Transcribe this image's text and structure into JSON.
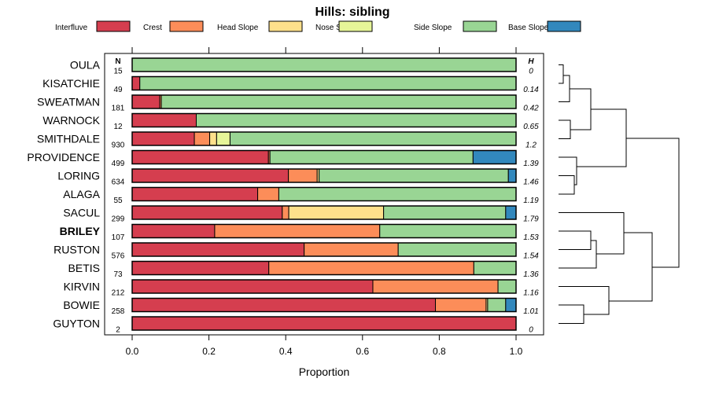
{
  "chart_data": {
    "type": "bar",
    "orientation": "horizontal",
    "stacked": true,
    "title": "Hills: sibling",
    "xlabel": "Proportion",
    "xlim": [
      0,
      1
    ],
    "xticks": [
      "0.0",
      "0.2",
      "0.4",
      "0.6",
      "0.8",
      "1.0"
    ],
    "xtick_values": [
      0,
      0.2,
      0.4,
      0.6,
      0.8,
      1.0
    ],
    "n_header": "N",
    "h_header": "H",
    "highlight": "BRILEY",
    "legend": {
      "position": "top",
      "entries": [
        {
          "name": "Interfluve",
          "color": "#D53E4F"
        },
        {
          "name": "Crest",
          "color": "#FC8D59"
        },
        {
          "name": "Head Slope",
          "color": "#FEE08B"
        },
        {
          "name": "Nose Slope",
          "color": "#E6F598"
        },
        {
          "name": "Side Slope",
          "color": "#99D594"
        },
        {
          "name": "Base Slope",
          "color": "#3288BD"
        }
      ]
    },
    "series_names": [
      "Interfluve",
      "Crest",
      "Head Slope",
      "Nose Slope",
      "Side Slope",
      "Base Slope"
    ],
    "rows": [
      {
        "name": "OULA",
        "n": "15",
        "h": "0",
        "values": [
          0,
          0,
          0,
          0,
          1.0,
          0
        ]
      },
      {
        "name": "KISATCHIE",
        "n": "49",
        "h": "0.14",
        "values": [
          0.02,
          0,
          0,
          0,
          0.98,
          0
        ]
      },
      {
        "name": "SWEATMAN",
        "n": "181",
        "h": "0.42",
        "values": [
          0.072,
          0.004,
          0,
          0,
          0.924,
          0
        ]
      },
      {
        "name": "WARNOCK",
        "n": "12",
        "h": "0.65",
        "values": [
          0.167,
          0,
          0,
          0,
          0.833,
          0
        ]
      },
      {
        "name": "SMITHDALE",
        "n": "930",
        "h": "1.2",
        "values": [
          0.162,
          0.04,
          0.018,
          0.035,
          0.745,
          0
        ]
      },
      {
        "name": "PROVIDENCE",
        "n": "499",
        "h": "1.39",
        "values": [
          0.355,
          0.004,
          0,
          0,
          0.529,
          0.112
        ]
      },
      {
        "name": "LORING",
        "n": "634",
        "h": "1.46",
        "values": [
          0.407,
          0.075,
          0.005,
          0,
          0.493,
          0.02
        ]
      },
      {
        "name": "ALAGA",
        "n": "55",
        "h": "1.19",
        "values": [
          0.327,
          0.055,
          0,
          0,
          0.618,
          0
        ]
      },
      {
        "name": "SACUL",
        "n": "299",
        "h": "1.79",
        "values": [
          0.391,
          0.017,
          0.247,
          0,
          0.318,
          0.027
        ]
      },
      {
        "name": "BRILEY",
        "n": "107",
        "h": "1.53",
        "values": [
          0.215,
          0.43,
          0,
          0,
          0.355,
          0
        ]
      },
      {
        "name": "RUSTON",
        "n": "576",
        "h": "1.54",
        "values": [
          0.448,
          0.245,
          0,
          0,
          0.307,
          0
        ]
      },
      {
        "name": "BETIS",
        "n": "73",
        "h": "1.36",
        "values": [
          0.356,
          0.534,
          0,
          0,
          0.11,
          0
        ]
      },
      {
        "name": "KIRVIN",
        "n": "212",
        "h": "1.16",
        "values": [
          0.627,
          0.326,
          0,
          0,
          0.047,
          0
        ]
      },
      {
        "name": "BOWIE",
        "n": "258",
        "h": "1.01",
        "values": [
          0.79,
          0.132,
          0.004,
          0,
          0.047,
          0.027
        ]
      },
      {
        "name": "GUYTON",
        "n": "2",
        "h": "0",
        "values": [
          1.0,
          0,
          0,
          0,
          0,
          0
        ]
      }
    ]
  }
}
